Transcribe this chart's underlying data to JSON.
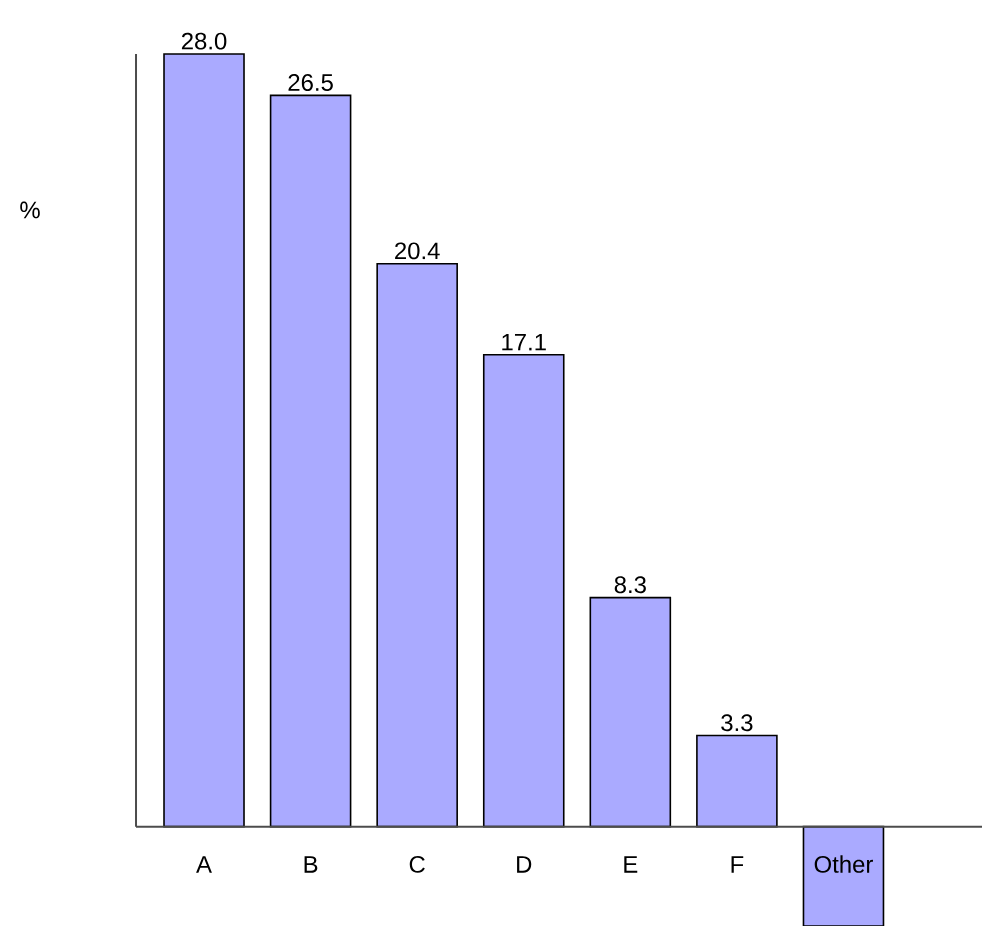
{
  "chart_data": {
    "type": "bar",
    "ylabel": "%",
    "categories": [
      "A",
      "B",
      "C",
      "D",
      "E",
      "F",
      "Other"
    ],
    "values": [
      28.0,
      26.5,
      20.4,
      17.1,
      8.3,
      3.3,
      -3.6
    ],
    "value_labels": [
      "28.0",
      "26.5",
      "20.4",
      "17.1",
      "8.3",
      "3.3",
      null
    ],
    "color": "#aaaaff"
  }
}
